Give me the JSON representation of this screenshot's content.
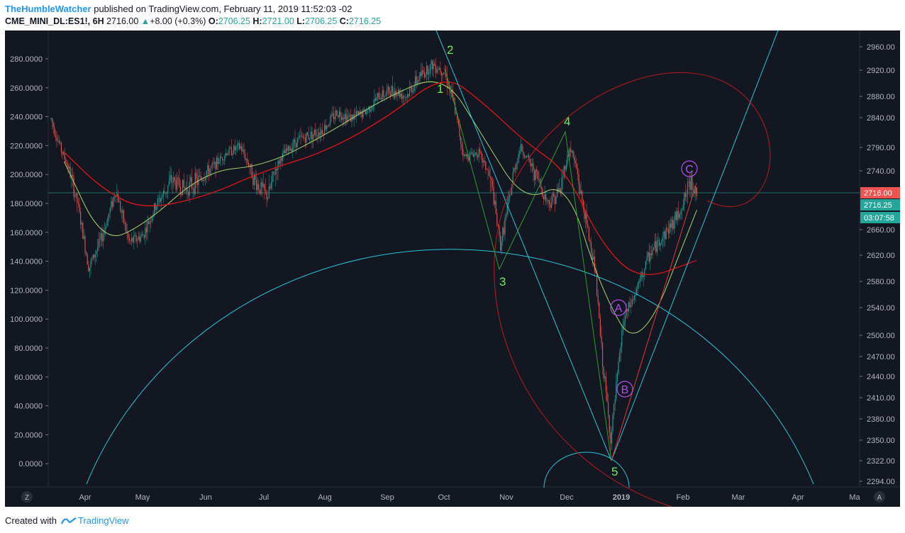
{
  "header": {
    "author": "TheHumbleWatcher",
    "published": "published on TradingView.com, February 11, 2019 11:52:03 -02",
    "symbol": "CME_MINI_DL:ES1!, 6H",
    "last": "2716.00",
    "change": "+8.00 (+0.3%)",
    "o_label": "O:",
    "o_value": "2706.25",
    "h_label": "H:",
    "h_value": "2721.00",
    "l_label": "L:",
    "l_value": "2706.25",
    "c_label": "C:",
    "c_value": "2716.25"
  },
  "footer": {
    "created": "Created with",
    "brand": "TradingView"
  },
  "colors": {
    "background": "#131722",
    "up": "#26a69a",
    "down": "#ef5350",
    "ma_fast": "#a5d66b",
    "ma_slow": "#e31515",
    "fib": "#26c6da",
    "wave": "#69f04a",
    "abc": "#b44ee8"
  },
  "chart_data": {
    "type": "candlestick",
    "timeframe": "6H",
    "x_labels": [
      "Apr",
      "May",
      "Jun",
      "Jul",
      "Aug",
      "Sep",
      "Oct",
      "Nov",
      "Dec",
      "2019",
      "Feb",
      "Mar",
      "Apr",
      "Ma"
    ],
    "left_axis": {
      "labels": [
        "280.0000",
        "260.0000",
        "240.0000",
        "220.0000",
        "200.0000",
        "180.0000",
        "160.0000",
        "140.0000",
        "120.0000",
        "100.0000",
        "80.0000",
        "60.0000",
        "40.0000",
        "20.0000",
        "0.0000"
      ]
    },
    "right_axis": {
      "labels": [
        "2960.00",
        "2920.00",
        "2880.00",
        "2840.00",
        "2790.00",
        "2740.00",
        "2660.00",
        "2620.00",
        "2580.00",
        "2540.00",
        "2500.00",
        "2470.00",
        "2440.00",
        "2410.00",
        "2380.00",
        "2350.00",
        "2322.00",
        "2294.00"
      ]
    },
    "price_tags": [
      {
        "text": "2716.00",
        "color": "#ef5350"
      },
      {
        "text": "2716.25",
        "color": "#26a69a"
      },
      {
        "text": "03:07:58",
        "color": "#26a69a"
      }
    ],
    "corner_left": "Z",
    "corner_right": "A",
    "series": [
      {
        "name": "Price",
        "x": [
          "Mar 21",
          "Mar 28",
          "Apr 3",
          "Apr 10",
          "Apr 17",
          "Apr 24",
          "May 1",
          "May 8",
          "May 15",
          "May 22",
          "May 29",
          "Jun 5",
          "Jun 12",
          "Jun 19",
          "Jun 26",
          "Jul 3",
          "Jul 10",
          "Jul 17",
          "Jul 24",
          "Jul 31",
          "Aug 7",
          "Aug 14",
          "Aug 21",
          "Aug 28",
          "Sep 4",
          "Sep 11",
          "Sep 18",
          "Sep 25",
          "Oct 1",
          "Oct 5",
          "Oct 11",
          "Oct 18",
          "Oct 25",
          "Oct 29",
          "Nov 2",
          "Nov 8",
          "Nov 15",
          "Nov 22",
          "Nov 28",
          "Dec 3",
          "Dec 10",
          "Dec 17",
          "Dec 21",
          "Dec 26",
          "Jan 2",
          "Jan 8",
          "Jan 15",
          "Jan 22",
          "Jan 29",
          "Feb 5",
          "Feb 8"
        ],
        "y": [
          2770,
          2700,
          2600,
          2650,
          2720,
          2640,
          2650,
          2700,
          2730,
          2720,
          2730,
          2750,
          2780,
          2790,
          2730,
          2710,
          2770,
          2800,
          2810,
          2820,
          2850,
          2840,
          2850,
          2880,
          2890,
          2880,
          2910,
          2930,
          2920,
          2880,
          2770,
          2780,
          2720,
          2635,
          2700,
          2790,
          2740,
          2700,
          2720,
          2790,
          2700,
          2600,
          2470,
          2350,
          2520,
          2560,
          2620,
          2650,
          2680,
          2730,
          2716
        ]
      },
      {
        "name": "MA fast",
        "x": [
          "Mar 21",
          "Apr 10",
          "May 1",
          "Jun 1",
          "Jul 1",
          "Aug 1",
          "Sep 1",
          "Oct 1",
          "Oct 20",
          "Nov 10",
          "Dec 1",
          "Dec 20",
          "Jan 10",
          "Feb 8"
        ],
        "y": [
          2760,
          2640,
          2665,
          2740,
          2750,
          2810,
          2880,
          2915,
          2810,
          2700,
          2730,
          2570,
          2470,
          2690
        ]
      },
      {
        "name": "MA slow",
        "x": [
          "Mar 21",
          "Apr 10",
          "May 1",
          "Jun 1",
          "Jul 1",
          "Aug 1",
          "Sep 1",
          "Oct 1",
          "Oct 20",
          "Nov 10",
          "Dec 1",
          "Dec 20",
          "Jan 10",
          "Feb 8"
        ],
        "y": [
          2780,
          2720,
          2690,
          2710,
          2740,
          2780,
          2840,
          2915,
          2870,
          2800,
          2740,
          2640,
          2580,
          2612
        ]
      }
    ],
    "wave_labels": [
      {
        "text": "1",
        "x": "Sep 28",
        "y": 2900
      },
      {
        "text": "2",
        "x": "Oct 1",
        "y": 2950
      },
      {
        "text": "3",
        "x": "Oct 29",
        "y": 2610
      },
      {
        "text": "4",
        "x": "Dec 1",
        "y": 2845
      },
      {
        "text": "5",
        "x": "Dec 26",
        "y": 2315
      }
    ],
    "abc_labels": [
      {
        "text": "A",
        "x": "Dec 31",
        "y": 2537
      },
      {
        "text": "B",
        "x": "Jan 3",
        "y": 2425
      },
      {
        "text": "C",
        "x": "Feb 5",
        "y": 2745
      }
    ]
  }
}
